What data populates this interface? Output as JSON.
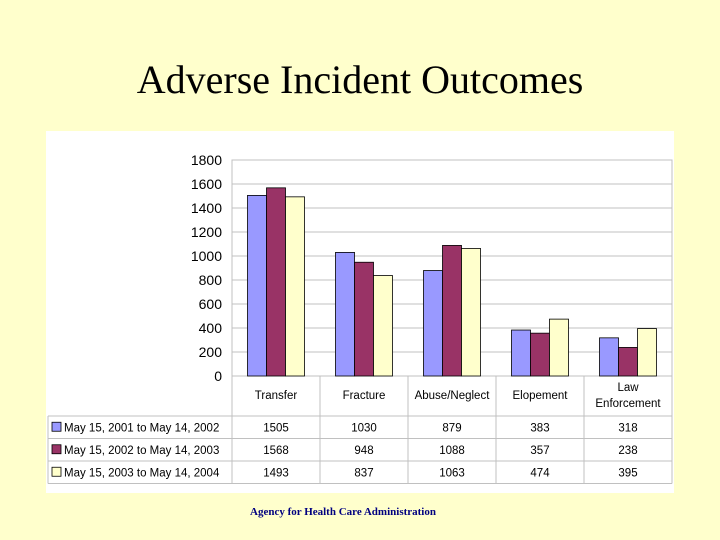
{
  "slide": {
    "title": "Adverse Incident Outcomes",
    "footer": "Agency for Health Care Administration"
  },
  "chart_data": {
    "type": "bar",
    "categories": [
      "Transfer",
      "Fracture",
      "Abuse/Neglect",
      "Elopement",
      "Law Enforcement"
    ],
    "series": [
      {
        "name": "May 15, 2001 to May 14, 2002",
        "color": "#9999ff",
        "values": [
          1505,
          1030,
          879,
          383,
          318
        ]
      },
      {
        "name": "May 15, 2002 to May 14, 2003",
        "color": "#993366",
        "values": [
          1568,
          948,
          1088,
          357,
          238
        ]
      },
      {
        "name": "May 15, 2003 to May 14, 2004",
        "color": "#ffffcc",
        "values": [
          1493,
          837,
          1063,
          474,
          395
        ]
      }
    ],
    "ylim": [
      0,
      1800
    ],
    "yticks": [
      0,
      200,
      400,
      600,
      800,
      1000,
      1200,
      1400,
      1600,
      1800
    ],
    "grid": true,
    "legend": "data-table",
    "title": "",
    "xlabel": "",
    "ylabel": ""
  }
}
